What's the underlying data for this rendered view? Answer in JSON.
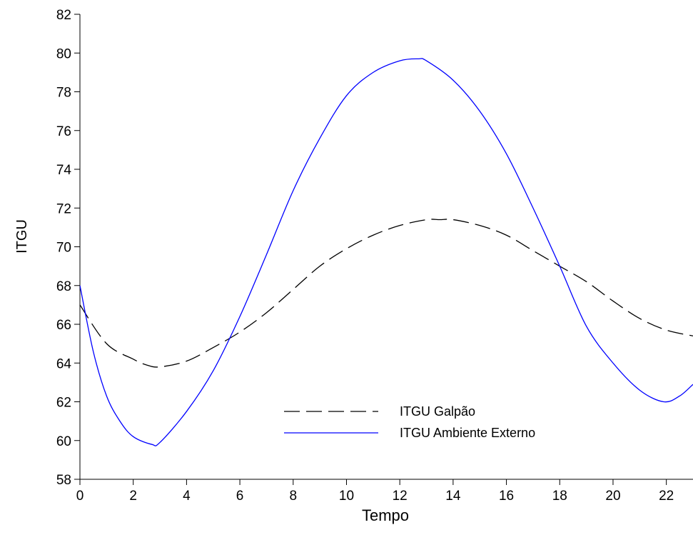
{
  "chart_data": {
    "type": "line",
    "title": "",
    "xlabel": "Tempo",
    "ylabel": "ITGU",
    "xlim": [
      0,
      23
    ],
    "ylim": [
      58,
      82
    ],
    "xticks": [
      0,
      2,
      4,
      6,
      8,
      10,
      12,
      14,
      16,
      18,
      20,
      22
    ],
    "yticks": [
      58,
      60,
      62,
      64,
      66,
      68,
      70,
      72,
      74,
      76,
      78,
      80,
      82
    ],
    "grid": false,
    "legend_position": "bottom-center",
    "series": [
      {
        "name": "ITGU Galpão",
        "style": "dashed",
        "color": "#000000",
        "x": [
          0,
          1,
          2,
          2.5,
          3,
          4,
          5,
          6,
          7,
          8,
          9,
          10,
          11,
          12,
          13,
          13.5,
          14,
          15,
          16,
          17,
          18,
          19,
          20,
          21,
          22,
          23
        ],
        "y": [
          67.0,
          65.0,
          64.2,
          63.9,
          63.8,
          64.1,
          64.8,
          65.6,
          66.6,
          67.8,
          69.0,
          69.9,
          70.6,
          71.1,
          71.4,
          71.4,
          71.4,
          71.1,
          70.6,
          69.8,
          69.0,
          68.2,
          67.2,
          66.3,
          65.7,
          65.4
        ]
      },
      {
        "name": "ITGU Ambiente Externo",
        "style": "solid",
        "color": "#0000ff",
        "x": [
          0,
          0.5,
          1,
          1.5,
          2,
          2.7,
          3,
          4,
          5,
          6,
          7,
          8,
          9,
          10,
          11,
          12,
          12.7,
          13,
          14,
          15,
          16,
          17,
          18,
          19,
          20,
          21,
          21.9,
          22.5,
          23
        ],
        "y": [
          68.0,
          64.6,
          62.3,
          61.0,
          60.2,
          59.8,
          59.9,
          61.5,
          63.6,
          66.4,
          69.6,
          72.9,
          75.6,
          77.8,
          79.0,
          79.6,
          79.7,
          79.6,
          78.6,
          77.0,
          74.8,
          72.0,
          69.0,
          65.9,
          64.0,
          62.6,
          62.0,
          62.3,
          62.9
        ]
      }
    ]
  }
}
